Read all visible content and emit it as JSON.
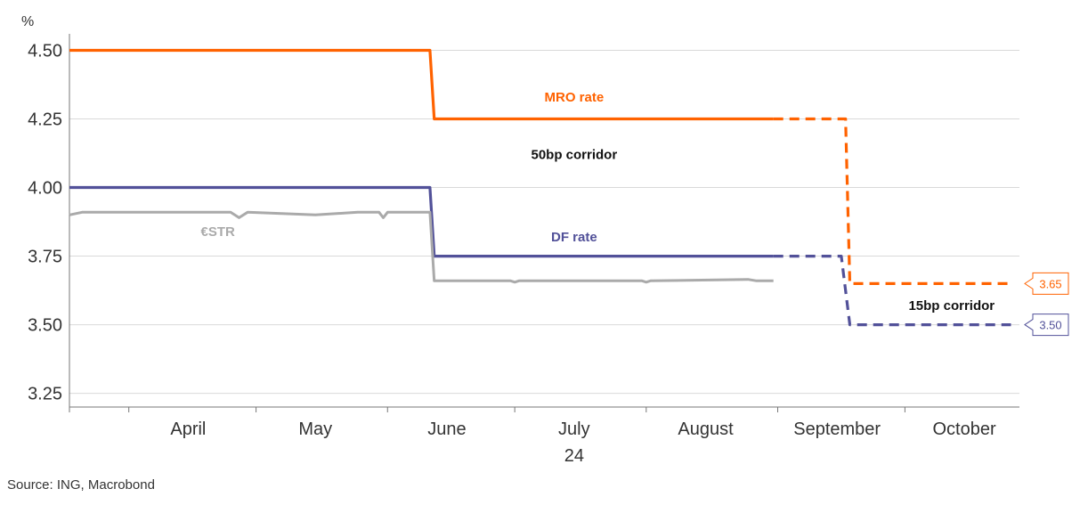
{
  "chart_data": {
    "type": "line",
    "ylabel": "%",
    "ylim": [
      3.2,
      4.56
    ],
    "yticks": [
      "3.25",
      "3.50",
      "3.75",
      "4.00",
      "4.25",
      "4.50"
    ],
    "xlim": [
      "2024-03-18",
      "2024-10-28"
    ],
    "xticks": [
      {
        "date": "2024-04-15",
        "label": "April"
      },
      {
        "date": "2024-05-15",
        "label": "May"
      },
      {
        "date": "2024-06-15",
        "label": "June"
      },
      {
        "date": "2024-07-15",
        "label": "July"
      },
      {
        "date": "2024-08-15",
        "label": "August"
      },
      {
        "date": "2024-09-15",
        "label": "September"
      },
      {
        "date": "2024-10-15",
        "label": "October"
      }
    ],
    "year_label": "24",
    "grid": true,
    "series": [
      {
        "name": "MRO rate",
        "color": "#ff6200",
        "style": "solid",
        "points": [
          [
            "2024-03-18",
            4.5
          ],
          [
            "2024-06-11",
            4.5
          ],
          [
            "2024-06-12",
            4.25
          ],
          [
            "2024-08-31",
            4.25
          ]
        ]
      },
      {
        "name": "MRO rate",
        "color": "#ff6200",
        "style": "dashed",
        "points": [
          [
            "2024-08-31",
            4.25
          ],
          [
            "2024-09-17",
            4.25
          ],
          [
            "2024-09-18",
            3.65
          ],
          [
            "2024-10-26",
            3.65
          ]
        ]
      },
      {
        "name": "DF rate",
        "color": "#525199",
        "style": "solid",
        "points": [
          [
            "2024-03-18",
            4.0
          ],
          [
            "2024-06-11",
            4.0
          ],
          [
            "2024-06-12",
            3.75
          ],
          [
            "2024-08-31",
            3.75
          ]
        ]
      },
      {
        "name": "DF rate",
        "color": "#525199",
        "style": "dashed",
        "points": [
          [
            "2024-08-31",
            3.75
          ],
          [
            "2024-09-16",
            3.75
          ],
          [
            "2024-09-18",
            3.5
          ],
          [
            "2024-10-26",
            3.5
          ]
        ]
      },
      {
        "name": "€STR",
        "color": "#aaaaaa",
        "style": "solid",
        "points": [
          [
            "2024-03-18",
            3.9
          ],
          [
            "2024-03-21",
            3.91
          ],
          [
            "2024-04-05",
            3.91
          ],
          [
            "2024-04-20",
            3.91
          ],
          [
            "2024-04-25",
            3.91
          ],
          [
            "2024-04-27",
            3.89
          ],
          [
            "2024-04-29",
            3.91
          ],
          [
            "2024-05-15",
            3.9
          ],
          [
            "2024-05-25",
            3.91
          ],
          [
            "2024-05-30",
            3.91
          ],
          [
            "2024-05-31",
            3.89
          ],
          [
            "2024-06-01",
            3.91
          ],
          [
            "2024-06-11",
            3.91
          ],
          [
            "2024-06-12",
            3.66
          ],
          [
            "2024-06-20",
            3.66
          ],
          [
            "2024-06-30",
            3.66
          ],
          [
            "2024-07-01",
            3.655
          ],
          [
            "2024-07-02",
            3.66
          ],
          [
            "2024-07-20",
            3.66
          ],
          [
            "2024-07-31",
            3.66
          ],
          [
            "2024-08-01",
            3.655
          ],
          [
            "2024-08-02",
            3.66
          ],
          [
            "2024-08-25",
            3.665
          ],
          [
            "2024-08-27",
            3.66
          ],
          [
            "2024-08-31",
            3.66
          ]
        ]
      }
    ],
    "annotations": [
      {
        "text": "MRO rate",
        "date": "2024-07-15",
        "y": 4.33,
        "color": "#ff6200"
      },
      {
        "text": "50bp corridor",
        "date": "2024-07-15",
        "y": 4.12,
        "color": "#111111"
      },
      {
        "text": "DF rate",
        "date": "2024-07-15",
        "y": 3.82,
        "color": "#525199"
      },
      {
        "text": "€STR",
        "date": "2024-04-22",
        "y": 3.84,
        "color": "#aaaaaa"
      },
      {
        "text": "15bp corridor",
        "date": "2024-10-12",
        "y": 3.57,
        "color": "#111111"
      }
    ],
    "callouts": [
      {
        "text": "3.65",
        "y": 3.65,
        "color": "#ff6200"
      },
      {
        "text": "3.50",
        "y": 3.5,
        "color": "#525199"
      }
    ],
    "source": "Source: ING, Macrobond"
  }
}
